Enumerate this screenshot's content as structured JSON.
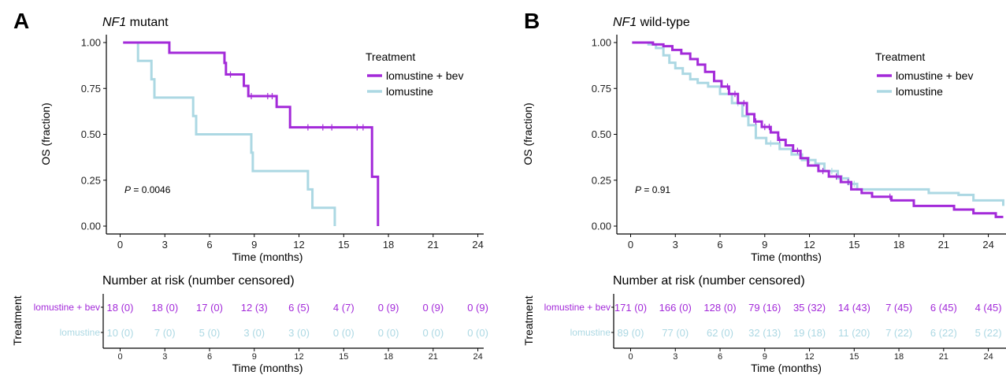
{
  "colors": {
    "lomustine_bev": "#a32ad9",
    "lomustine": "#acd8e3",
    "axis": "#000000"
  },
  "chart_data": [
    {
      "panel_label": "A",
      "title_italic": "NF1",
      "title_rest": " mutant",
      "type": "line",
      "xlabel": "Time (months)",
      "ylabel": "OS (fraction)",
      "xlim": [
        0,
        25
      ],
      "ylim": [
        0,
        1
      ],
      "xticks": [
        0,
        3,
        6,
        9,
        12,
        15,
        18,
        21,
        24
      ],
      "yticks": [
        "0.00",
        "0.25",
        "0.50",
        "0.75",
        "1.00"
      ],
      "legend_title": "Treatment",
      "legend_labels": [
        "lomustine + bev",
        "lomustine"
      ],
      "pvalue_letter": "P",
      "pvalue_text": " = 0.0046",
      "series": [
        {
          "name": "lomustine + bev",
          "steps": [
            [
              0.2,
              1.0
            ],
            [
              1.2,
              1.0
            ],
            [
              3.3,
              0.944
            ],
            [
              7.0,
              0.889
            ],
            [
              7.1,
              0.826
            ],
            [
              8.3,
              0.764
            ],
            [
              8.6,
              0.708
            ],
            [
              10.5,
              0.649
            ],
            [
              11.4,
              0.538
            ],
            [
              16.9,
              0.269
            ],
            [
              17.3,
              0.0
            ]
          ],
          "end": 17.3,
          "censor": [
            7.4,
            8.8,
            9.9,
            10.2,
            12.6,
            13.6,
            14.2,
            15.9,
            16.3
          ]
        },
        {
          "name": "lomustine",
          "steps": [
            [
              0.2,
              1.0
            ],
            [
              1.2,
              0.9
            ],
            [
              2.1,
              0.8
            ],
            [
              2.3,
              0.7
            ],
            [
              4.9,
              0.6
            ],
            [
              5.1,
              0.5
            ],
            [
              8.8,
              0.4
            ],
            [
              8.9,
              0.3
            ],
            [
              12.6,
              0.2
            ],
            [
              12.9,
              0.1
            ],
            [
              14.4,
              0.0
            ]
          ],
          "end": 14.4,
          "censor": []
        }
      ],
      "risk_title": "Number at risk (number censored)",
      "risk_ylabel": "Treatment",
      "risk_xlabel": "Time (months)",
      "risk_rows": [
        {
          "name": "lomustine + bev",
          "values": [
            "18 (0)",
            "18 (0)",
            "17 (0)",
            "12 (3)",
            "6 (5)",
            "4 (7)",
            "0 (9)",
            "0 (9)",
            "0 (9)"
          ]
        },
        {
          "name": "lomustine",
          "values": [
            "10 (0)",
            "7 (0)",
            "5 (0)",
            "3 (0)",
            "3 (0)",
            "0 (0)",
            "0 (0)",
            "0 (0)",
            "0 (0)"
          ]
        }
      ]
    },
    {
      "panel_label": "B",
      "title_italic": "NF1",
      "title_rest": " wild-type",
      "type": "line",
      "xlabel": "Time (months)",
      "ylabel": "OS (fraction)",
      "xlim": [
        0,
        25
      ],
      "ylim": [
        0,
        1
      ],
      "xticks": [
        0,
        3,
        6,
        9,
        12,
        15,
        18,
        21,
        24
      ],
      "yticks": [
        "0.00",
        "0.25",
        "0.50",
        "0.75",
        "1.00"
      ],
      "legend_title": "Treatment",
      "legend_labels": [
        "lomustine + bev",
        "lomustine"
      ],
      "pvalue_letter": "P",
      "pvalue_text": " = 0.91",
      "series": [
        {
          "name": "lomustine + bev",
          "steps": [
            [
              0.1,
              1.0
            ],
            [
              1.5,
              0.99
            ],
            [
              2.2,
              0.98
            ],
            [
              2.8,
              0.96
            ],
            [
              3.4,
              0.94
            ],
            [
              4.0,
              0.91
            ],
            [
              4.5,
              0.88
            ],
            [
              5.0,
              0.84
            ],
            [
              5.6,
              0.79
            ],
            [
              6.1,
              0.76
            ],
            [
              6.6,
              0.72
            ],
            [
              7.2,
              0.67
            ],
            [
              7.8,
              0.61
            ],
            [
              8.3,
              0.57
            ],
            [
              8.8,
              0.54
            ],
            [
              9.4,
              0.51
            ],
            [
              9.9,
              0.47
            ],
            [
              10.4,
              0.44
            ],
            [
              10.9,
              0.41
            ],
            [
              11.4,
              0.37
            ],
            [
              11.9,
              0.33
            ],
            [
              12.6,
              0.3
            ],
            [
              13.3,
              0.27
            ],
            [
              14.1,
              0.24
            ],
            [
              14.8,
              0.2
            ],
            [
              15.5,
              0.18
            ],
            [
              16.2,
              0.16
            ],
            [
              17.5,
              0.14
            ],
            [
              19.0,
              0.11
            ],
            [
              21.7,
              0.09
            ],
            [
              23.0,
              0.07
            ],
            [
              24.5,
              0.05
            ]
          ],
          "end": 25.0,
          "censor": [
            6.5,
            7.0,
            7.6,
            8.4,
            9.0,
            9.3,
            10.0,
            11.2,
            12.9,
            13.8,
            14.6,
            17.4
          ]
        },
        {
          "name": "lomustine",
          "steps": [
            [
              0.1,
              1.0
            ],
            [
              1.2,
              0.99
            ],
            [
              1.7,
              0.97
            ],
            [
              2.2,
              0.93
            ],
            [
              2.6,
              0.89
            ],
            [
              3.0,
              0.86
            ],
            [
              3.5,
              0.83
            ],
            [
              4.0,
              0.8
            ],
            [
              4.5,
              0.78
            ],
            [
              5.2,
              0.76
            ],
            [
              6.0,
              0.72
            ],
            [
              6.8,
              0.67
            ],
            [
              7.5,
              0.6
            ],
            [
              7.9,
              0.55
            ],
            [
              8.4,
              0.48
            ],
            [
              9.1,
              0.45
            ],
            [
              10.0,
              0.42
            ],
            [
              10.8,
              0.39
            ],
            [
              11.5,
              0.36
            ],
            [
              12.4,
              0.34
            ],
            [
              13.0,
              0.3
            ],
            [
              13.9,
              0.26
            ],
            [
              14.6,
              0.23
            ],
            [
              15.2,
              0.2
            ],
            [
              20.0,
              0.18
            ],
            [
              22.0,
              0.17
            ],
            [
              23.0,
              0.14
            ],
            [
              25.0,
              0.11
            ]
          ],
          "end": 25.0,
          "censor": [
            7.2,
            9.4,
            12.0,
            13.5,
            14.2,
            15.0
          ]
        }
      ],
      "risk_title": "Number at risk (number censored)",
      "risk_ylabel": "Treatment",
      "risk_xlabel": "Time (months)",
      "risk_rows": [
        {
          "name": "lomustine + bev",
          "values": [
            "171 (0)",
            "166 (0)",
            "128 (0)",
            "79 (16)",
            "35 (32)",
            "14 (43)",
            "7 (45)",
            "6 (45)",
            "4 (45)"
          ]
        },
        {
          "name": "lomustine",
          "values": [
            "89 (0)",
            "77 (0)",
            "62 (0)",
            "32 (13)",
            "19 (18)",
            "11 (20)",
            "7 (22)",
            "6 (22)",
            "5 (22)"
          ]
        }
      ]
    }
  ]
}
